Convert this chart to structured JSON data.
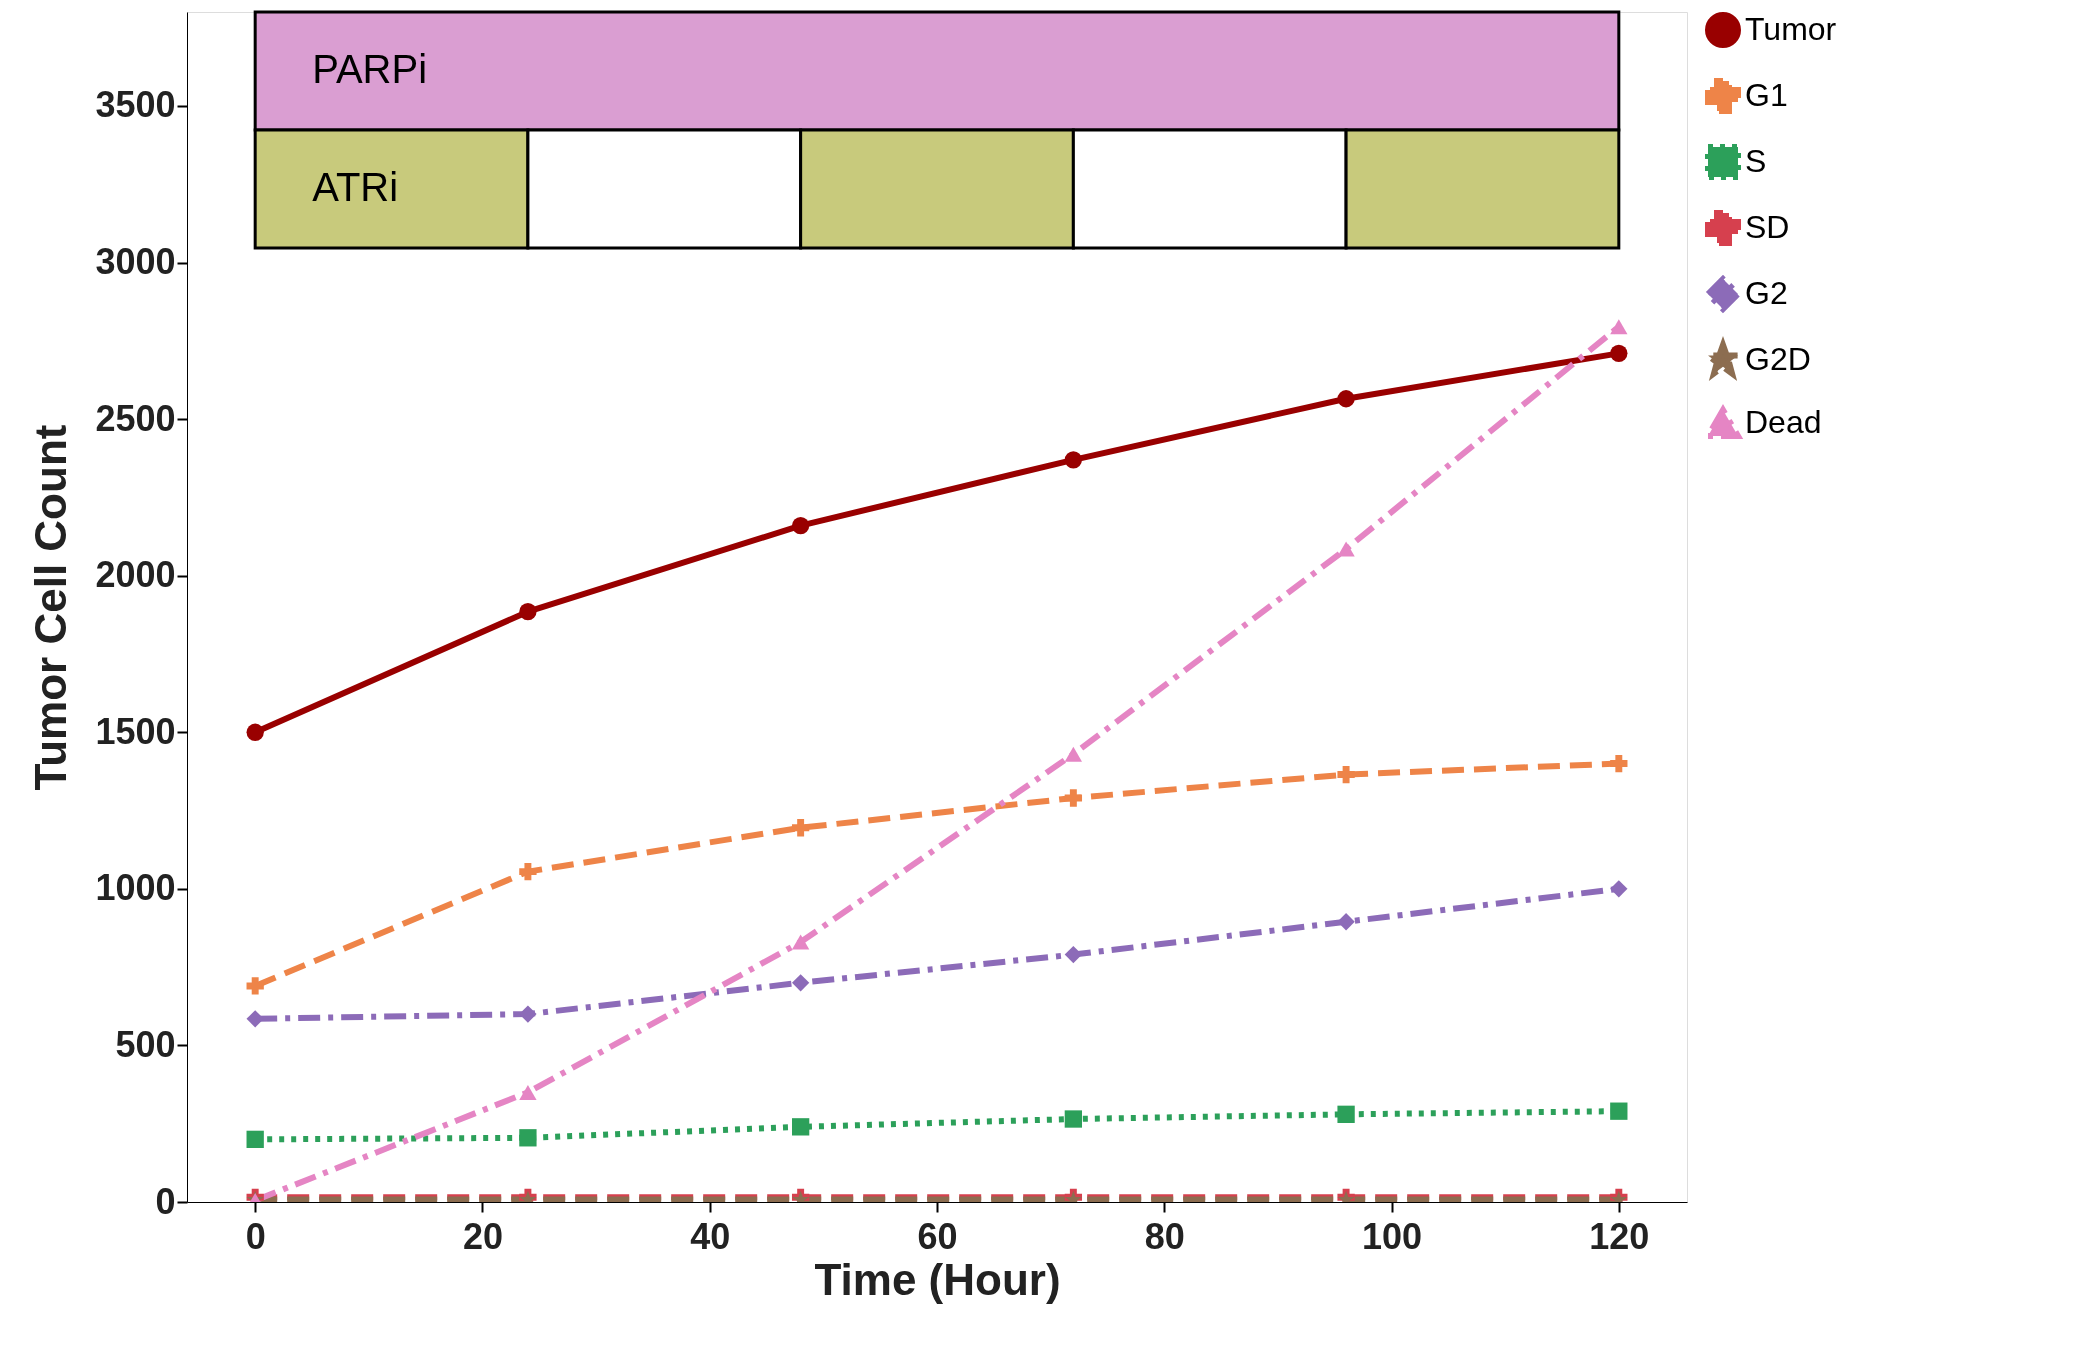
{
  "chart_data": {
    "type": "line",
    "xlabel": "Time (Hour)",
    "ylabel": "Tumor Cell Count",
    "x": [
      0,
      24,
      48,
      72,
      96,
      120
    ],
    "xlim": [
      -6,
      126
    ],
    "xticks": [
      0,
      20,
      40,
      60,
      80,
      100,
      120
    ],
    "ylim": [
      0,
      3800
    ],
    "yticks": [
      0,
      500,
      1000,
      1500,
      2000,
      2500,
      3000,
      3500
    ],
    "grid": false,
    "legend": "right",
    "series": [
      {
        "name": "Tumor",
        "color": "#990000",
        "marker": "circle",
        "line_style": "solid",
        "values": [
          1500,
          1885,
          2160,
          2370,
          2565,
          2710
        ]
      },
      {
        "name": "G1",
        "color": "#ee8448",
        "marker": "cross",
        "line_style": "dashed",
        "values": [
          690,
          1055,
          1195,
          1290,
          1365,
          1400
        ]
      },
      {
        "name": "S",
        "color": "#2ca05a",
        "marker": "square",
        "line_style": "dotted",
        "values": [
          200,
          205,
          240,
          265,
          280,
          290
        ]
      },
      {
        "name": "SD",
        "color": "#d6404e",
        "marker": "cross",
        "line_style": "dashed",
        "values": [
          15,
          15,
          15,
          15,
          15,
          15
        ]
      },
      {
        "name": "G2",
        "color": "#8c6bb8",
        "marker": "diamond",
        "line_style": "dashdot",
        "values": [
          585,
          600,
          700,
          790,
          895,
          1000
        ]
      },
      {
        "name": "G2D",
        "color": "#8c6d50",
        "marker": "star",
        "line_style": "dashed",
        "values": [
          8,
          8,
          8,
          8,
          8,
          8
        ]
      },
      {
        "name": "Dead",
        "color": "#e585c4",
        "marker": "triangle",
        "line_style": "dashdot",
        "values": [
          5,
          350,
          830,
          1430,
          2085,
          2795
        ]
      }
    ],
    "bands": [
      {
        "axis": "x",
        "from": 0,
        "to": 120,
        "label": "PARPi",
        "color": "#da9ed2"
      },
      {
        "axis": "x",
        "from": 0,
        "to": 24,
        "label": "ATRi",
        "color": "#c8ca7c"
      },
      {
        "axis": "x",
        "from": 24,
        "to": 48,
        "label": null,
        "color": "#ffffff"
      },
      {
        "axis": "x",
        "from": 48,
        "to": 72,
        "label": null,
        "color": "#c8ca7c"
      },
      {
        "axis": "x",
        "from": 72,
        "to": 96,
        "label": null,
        "color": "#ffffff"
      },
      {
        "axis": "x",
        "from": 96,
        "to": 120,
        "label": null,
        "color": "#c8ca7c"
      }
    ]
  }
}
